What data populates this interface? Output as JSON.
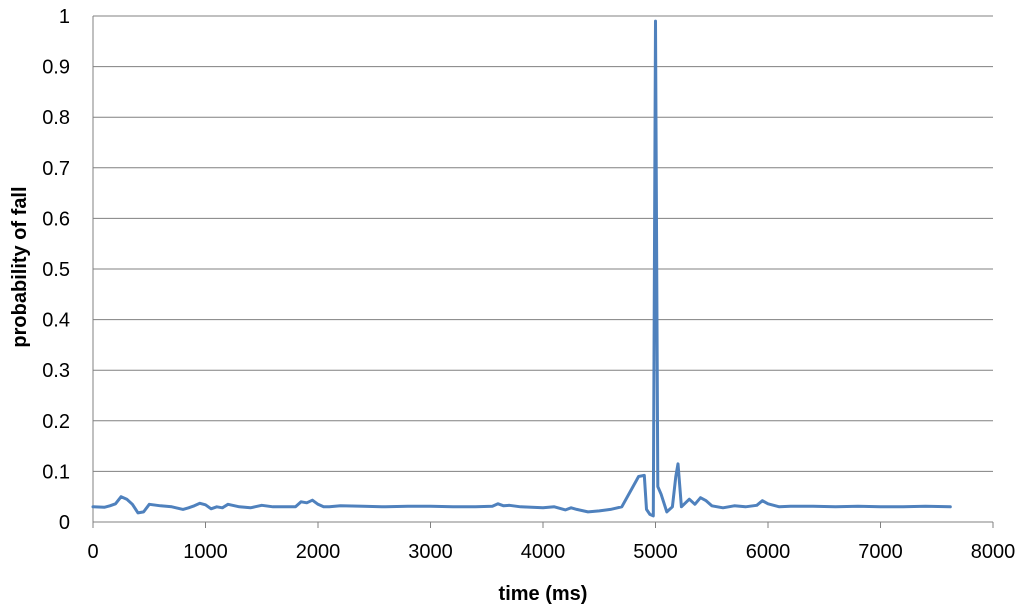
{
  "chart_data": {
    "type": "line",
    "title": "",
    "xlabel": "time (ms)",
    "ylabel": "probability of fall",
    "xlim": [
      0,
      8000
    ],
    "ylim": [
      0,
      1
    ],
    "x_ticks": [
      "0",
      "1000",
      "2000",
      "3000",
      "4000",
      "5000",
      "6000",
      "7000",
      "8000"
    ],
    "y_ticks": [
      "0",
      "0.1",
      "0.2",
      "0.3",
      "0.4",
      "0.5",
      "0.6",
      "0.7",
      "0.8",
      "0.9",
      "1"
    ],
    "grid": "horizontal",
    "legend": "none",
    "series": [
      {
        "color": "#4f81bd",
        "x": [
          0,
          100,
          150,
          200,
          250,
          300,
          350,
          400,
          450,
          500,
          600,
          700,
          800,
          850,
          900,
          950,
          1000,
          1050,
          1100,
          1150,
          1200,
          1300,
          1400,
          1500,
          1600,
          1700,
          1800,
          1850,
          1900,
          1950,
          2000,
          2050,
          2100,
          2200,
          2400,
          2600,
          2800,
          3000,
          3200,
          3400,
          3550,
          3600,
          3650,
          3700,
          3800,
          4000,
          4100,
          4200,
          4250,
          4300,
          4400,
          4500,
          4600,
          4700,
          4800,
          4850,
          4900,
          4920,
          4950,
          4980,
          5000,
          5020,
          5050,
          5100,
          5150,
          5180,
          5200,
          5230,
          5300,
          5350,
          5400,
          5450,
          5500,
          5600,
          5700,
          5800,
          5900,
          5950,
          6000,
          6100,
          6200,
          6400,
          6600,
          6800,
          7000,
          7200,
          7400,
          7620
        ],
        "values": [
          0.03,
          0.029,
          0.032,
          0.036,
          0.05,
          0.045,
          0.035,
          0.018,
          0.02,
          0.035,
          0.032,
          0.03,
          0.025,
          0.028,
          0.032,
          0.037,
          0.034,
          0.026,
          0.03,
          0.028,
          0.035,
          0.03,
          0.028,
          0.033,
          0.03,
          0.03,
          0.03,
          0.04,
          0.038,
          0.043,
          0.035,
          0.03,
          0.03,
          0.032,
          0.031,
          0.03,
          0.031,
          0.031,
          0.03,
          0.03,
          0.031,
          0.036,
          0.032,
          0.033,
          0.03,
          0.028,
          0.03,
          0.024,
          0.028,
          0.025,
          0.02,
          0.022,
          0.025,
          0.03,
          0.07,
          0.09,
          0.092,
          0.025,
          0.015,
          0.012,
          0.99,
          0.07,
          0.055,
          0.02,
          0.03,
          0.09,
          0.115,
          0.03,
          0.045,
          0.035,
          0.048,
          0.042,
          0.032,
          0.028,
          0.032,
          0.03,
          0.033,
          0.042,
          0.036,
          0.03,
          0.031,
          0.031,
          0.03,
          0.031,
          0.03,
          0.03,
          0.031,
          0.03
        ]
      }
    ]
  }
}
